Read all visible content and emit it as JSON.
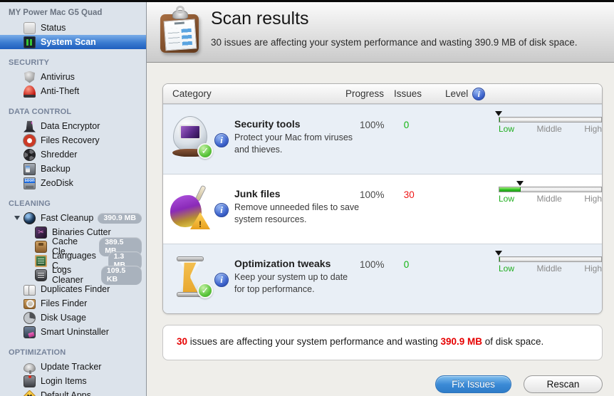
{
  "icons": {
    "check": "✓",
    "warning": "!",
    "info": "i",
    "scissors": "✂",
    "zeodisk_soon": "soon"
  },
  "colors": {
    "selection_blue": "#2f6fc6",
    "button_blue": "#3b8ad6",
    "ok_green": "#12b412",
    "alert_red": "#ee1515",
    "badge_gray": "#a9b2bd",
    "sidebar_bg": "#dce3eb"
  },
  "sidebar": {
    "device": "MY Power Mac G5 Quad",
    "sections": [
      {
        "items": [
          {
            "label": "Status"
          },
          {
            "label": "System Scan"
          }
        ]
      },
      {
        "header": "SECURITY",
        "items": [
          {
            "label": "Antivirus"
          },
          {
            "label": "Anti-Theft"
          }
        ]
      },
      {
        "header": "DATA CONTROL",
        "items": [
          {
            "label": "Data Encryptor"
          },
          {
            "label": "Files Recovery"
          },
          {
            "label": "Shredder"
          },
          {
            "label": "Backup"
          },
          {
            "label": "ZeoDisk"
          }
        ]
      },
      {
        "header": "CLEANING",
        "items": [
          {
            "label": "Fast Cleanup",
            "badge": "390.9 MB"
          },
          {
            "label": "Binaries Cutter"
          },
          {
            "label": "Cache Cle...",
            "badge": "389.5 MB"
          },
          {
            "label": "Languages C...",
            "badge": "1.3 MB"
          },
          {
            "label": "Logs Cleaner",
            "badge": "109.5 KB"
          },
          {
            "label": "Duplicates Finder"
          },
          {
            "label": "Files Finder"
          },
          {
            "label": "Disk Usage"
          },
          {
            "label": "Smart Uninstaller"
          }
        ]
      },
      {
        "header": "OPTIMIZATION",
        "items": [
          {
            "label": "Update Tracker"
          },
          {
            "label": "Login Items"
          },
          {
            "label": "Default Apps"
          }
        ]
      }
    ]
  },
  "header": {
    "title": "Scan results",
    "subtitle": "30 issues are affecting your system performance and wasting 390.9 MB of disk space."
  },
  "table": {
    "columns": {
      "category": "Category",
      "progress": "Progress",
      "issues": "Issues",
      "level": "Level"
    },
    "level_labels": {
      "low": "Low",
      "middle": "Middle",
      "high": "High"
    },
    "rows": [
      {
        "name": "Security tools",
        "description": "Protect your Mac from viruses and thieves.",
        "progress": "100%",
        "issues": "0",
        "status": "ok",
        "level": {
          "marker_pct": 0,
          "fill_pct": 0
        }
      },
      {
        "name": "Junk files",
        "description": "Remove unneeded files to save system resources.",
        "progress": "100%",
        "issues": "30",
        "status": "issues",
        "level": {
          "marker_pct": 21,
          "fill_pct": 21
        }
      },
      {
        "name": "Optimization tweaks",
        "description": "Keep your system up to date for top performance.",
        "progress": "100%",
        "issues": "0",
        "status": "ok",
        "level": {
          "marker_pct": 0,
          "fill_pct": 0
        }
      }
    ]
  },
  "summary": {
    "issues_count": "30",
    "text_mid": " issues are affecting your system performance and wasting ",
    "size": "390.9 MB",
    "text_end": " of disk space."
  },
  "buttons": {
    "fix": "Fix Issues",
    "rescan": "Rescan"
  }
}
